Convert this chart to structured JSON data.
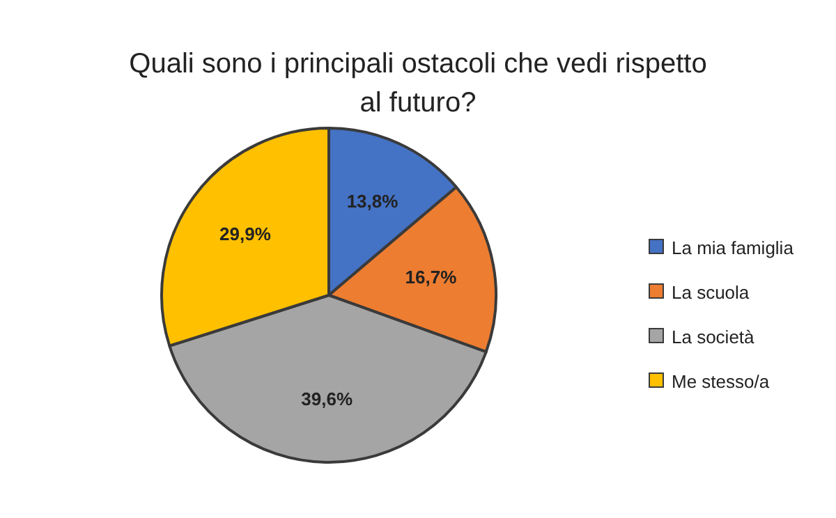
{
  "chart_data": {
    "type": "pie",
    "title": "Quali sono i principali ostacoli che vedi rispetto al futuro?",
    "categories": [
      "La mia famiglia",
      "La scuola",
      "La società",
      "Me stesso/a"
    ],
    "values": [
      13.8,
      16.7,
      39.6,
      29.9
    ],
    "value_labels": [
      "13,8%",
      "16,7%",
      "39,6%",
      "29,9%"
    ],
    "colors": [
      "#4472c4",
      "#ed7d31",
      "#a5a5a5",
      "#ffc000"
    ],
    "legend": "right"
  }
}
